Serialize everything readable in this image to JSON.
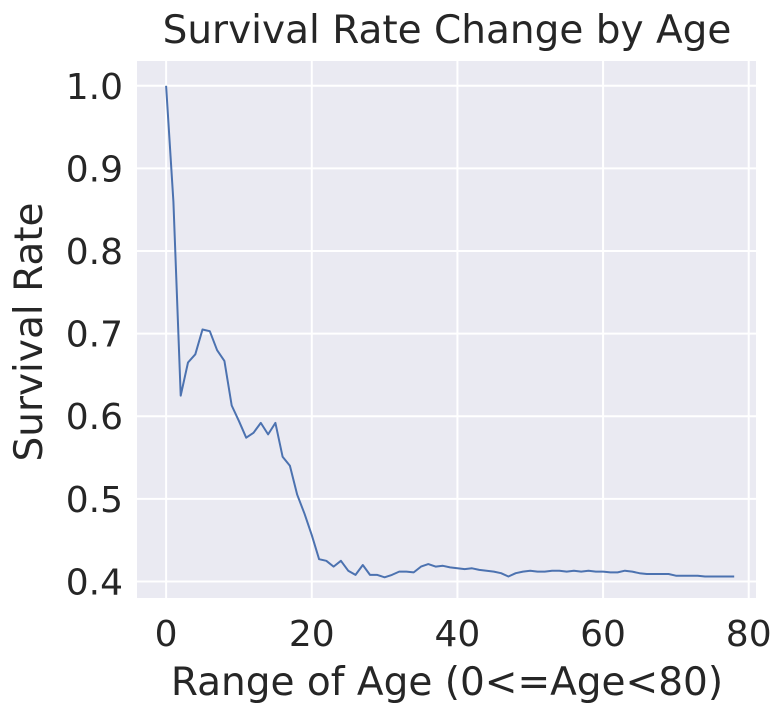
{
  "chart_data": {
    "type": "line",
    "title": "Survival Rate Change by Age",
    "xlabel": "Range of Age (0<=Age<80)",
    "ylabel": "Survival Rate",
    "xlim": [
      -4,
      81
    ],
    "ylim": [
      0.38,
      1.03
    ],
    "xticks": [
      0,
      20,
      40,
      60,
      80
    ],
    "yticks": [
      0.4,
      0.5,
      0.6,
      0.7,
      0.8,
      0.9,
      1.0
    ],
    "xtick_labels": [
      "0",
      "20",
      "40",
      "60",
      "80"
    ],
    "ytick_labels": [
      "0.4",
      "0.5",
      "0.6",
      "0.7",
      "0.8",
      "0.9",
      "1.0"
    ],
    "grid": true,
    "background": "#eaeaf2",
    "grid_color": "#ffffff",
    "line_color": "#4c72b0",
    "series": [
      {
        "x": [
          0,
          1,
          2,
          3,
          4,
          5,
          6,
          7,
          8,
          9,
          10,
          11,
          12,
          13,
          14,
          15,
          16,
          17,
          18,
          19,
          20,
          21,
          22,
          23,
          24,
          25,
          26,
          27,
          28,
          29,
          30,
          31,
          32,
          33,
          34,
          35,
          36,
          37,
          38,
          39,
          40,
          41,
          42,
          43,
          44,
          45,
          46,
          47,
          48,
          49,
          50,
          51,
          52,
          53,
          54,
          55,
          56,
          57,
          58,
          59,
          60,
          61,
          62,
          63,
          64,
          65,
          66,
          67,
          68,
          69,
          70,
          71,
          72,
          73,
          74,
          75,
          76,
          77,
          78
        ],
        "values": [
          1.0,
          0.86,
          0.625,
          0.665,
          0.675,
          0.705,
          0.703,
          0.68,
          0.667,
          0.613,
          0.594,
          0.574,
          0.58,
          0.592,
          0.578,
          0.592,
          0.551,
          0.54,
          0.505,
          0.482,
          0.456,
          0.427,
          0.425,
          0.418,
          0.425,
          0.413,
          0.408,
          0.42,
          0.408,
          0.408,
          0.405,
          0.408,
          0.412,
          0.412,
          0.411,
          0.418,
          0.421,
          0.418,
          0.419,
          0.417,
          0.416,
          0.415,
          0.416,
          0.414,
          0.413,
          0.412,
          0.41,
          0.406,
          0.41,
          0.412,
          0.413,
          0.412,
          0.412,
          0.413,
          0.413,
          0.412,
          0.413,
          0.412,
          0.413,
          0.412,
          0.412,
          0.411,
          0.411,
          0.413,
          0.412,
          0.41,
          0.409,
          0.409,
          0.409,
          0.409,
          0.407,
          0.407,
          0.407,
          0.407,
          0.406,
          0.406,
          0.406,
          0.406,
          0.406
        ]
      }
    ]
  }
}
